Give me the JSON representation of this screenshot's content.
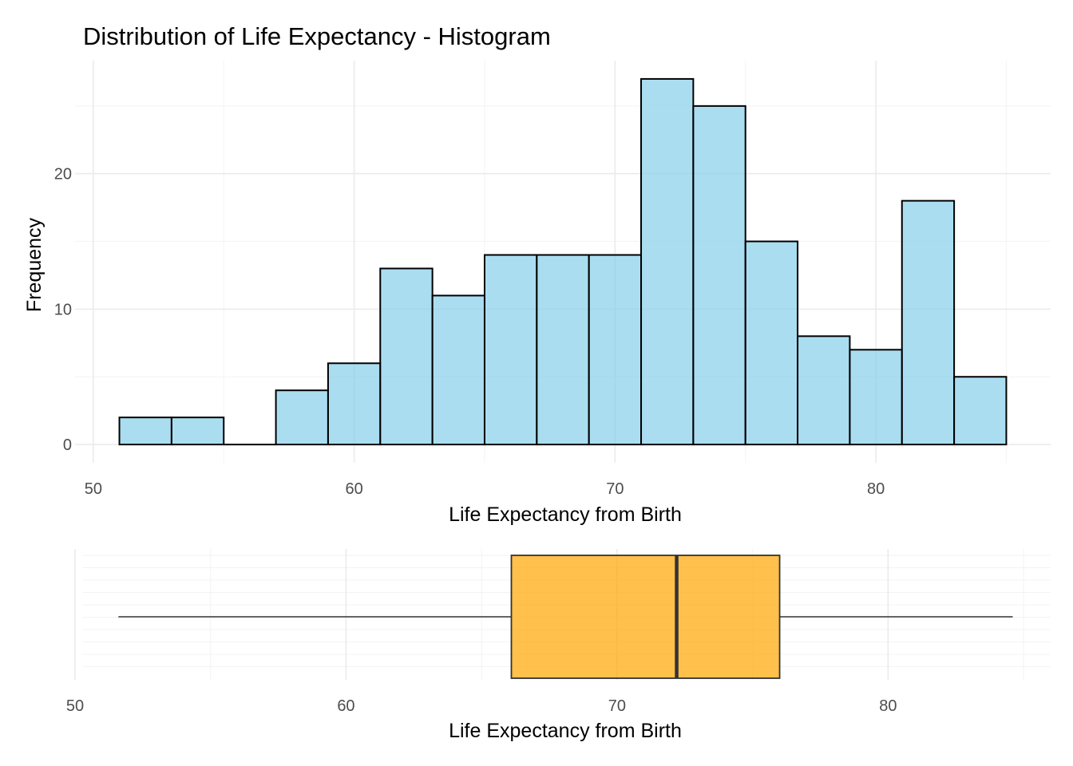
{
  "chart_data": [
    {
      "type": "bar",
      "subtype": "histogram",
      "title": "Distribution of Life Expectancy - Histogram",
      "xlabel": "Life Expectancy from Birth",
      "ylabel": "Frequency",
      "bins": [
        {
          "x0": 51,
          "x1": 53,
          "count": 2
        },
        {
          "x0": 53,
          "x1": 55,
          "count": 2
        },
        {
          "x0": 55,
          "x1": 57,
          "count": 0
        },
        {
          "x0": 57,
          "x1": 59,
          "count": 4
        },
        {
          "x0": 59,
          "x1": 61,
          "count": 6
        },
        {
          "x0": 61,
          "x1": 63,
          "count": 13
        },
        {
          "x0": 63,
          "x1": 65,
          "count": 11
        },
        {
          "x0": 65,
          "x1": 67,
          "count": 14
        },
        {
          "x0": 67,
          "x1": 69,
          "count": 14
        },
        {
          "x0": 69,
          "x1": 71,
          "count": 14
        },
        {
          "x0": 71,
          "x1": 73,
          "count": 27
        },
        {
          "x0": 73,
          "x1": 75,
          "count": 25
        },
        {
          "x0": 75,
          "x1": 77,
          "count": 15
        },
        {
          "x0": 77,
          "x1": 79,
          "count": 8
        },
        {
          "x0": 79,
          "x1": 81,
          "count": 7
        },
        {
          "x0": 81,
          "x1": 83,
          "count": 18
        },
        {
          "x0": 83,
          "x1": 85,
          "count": 5
        }
      ],
      "xlim": [
        49.3,
        86.7
      ],
      "ylim": [
        -1.35,
        28.35
      ],
      "xticks": [
        50,
        60,
        70,
        80
      ],
      "xtick_labels": [
        "50",
        "60",
        "70",
        "80"
      ],
      "yticks": [
        0,
        10,
        20
      ],
      "ytick_labels": [
        "0",
        "10",
        "20"
      ],
      "grid": true,
      "fill_color": "#87CEEB",
      "edge_color": "#000000"
    },
    {
      "type": "box",
      "orientation": "horizontal",
      "xlabel": "Life Expectancy from Birth",
      "min": 51.6,
      "q1": 66.1,
      "median": 72.2,
      "q3": 76.0,
      "max": 84.6,
      "xlim": [
        50,
        86
      ],
      "xticks": [
        50,
        60,
        70,
        80
      ],
      "xtick_labels": [
        "50",
        "60",
        "70",
        "80"
      ],
      "grid": true,
      "fill_color": "#FFA500",
      "edge_color": "#333333"
    }
  ]
}
